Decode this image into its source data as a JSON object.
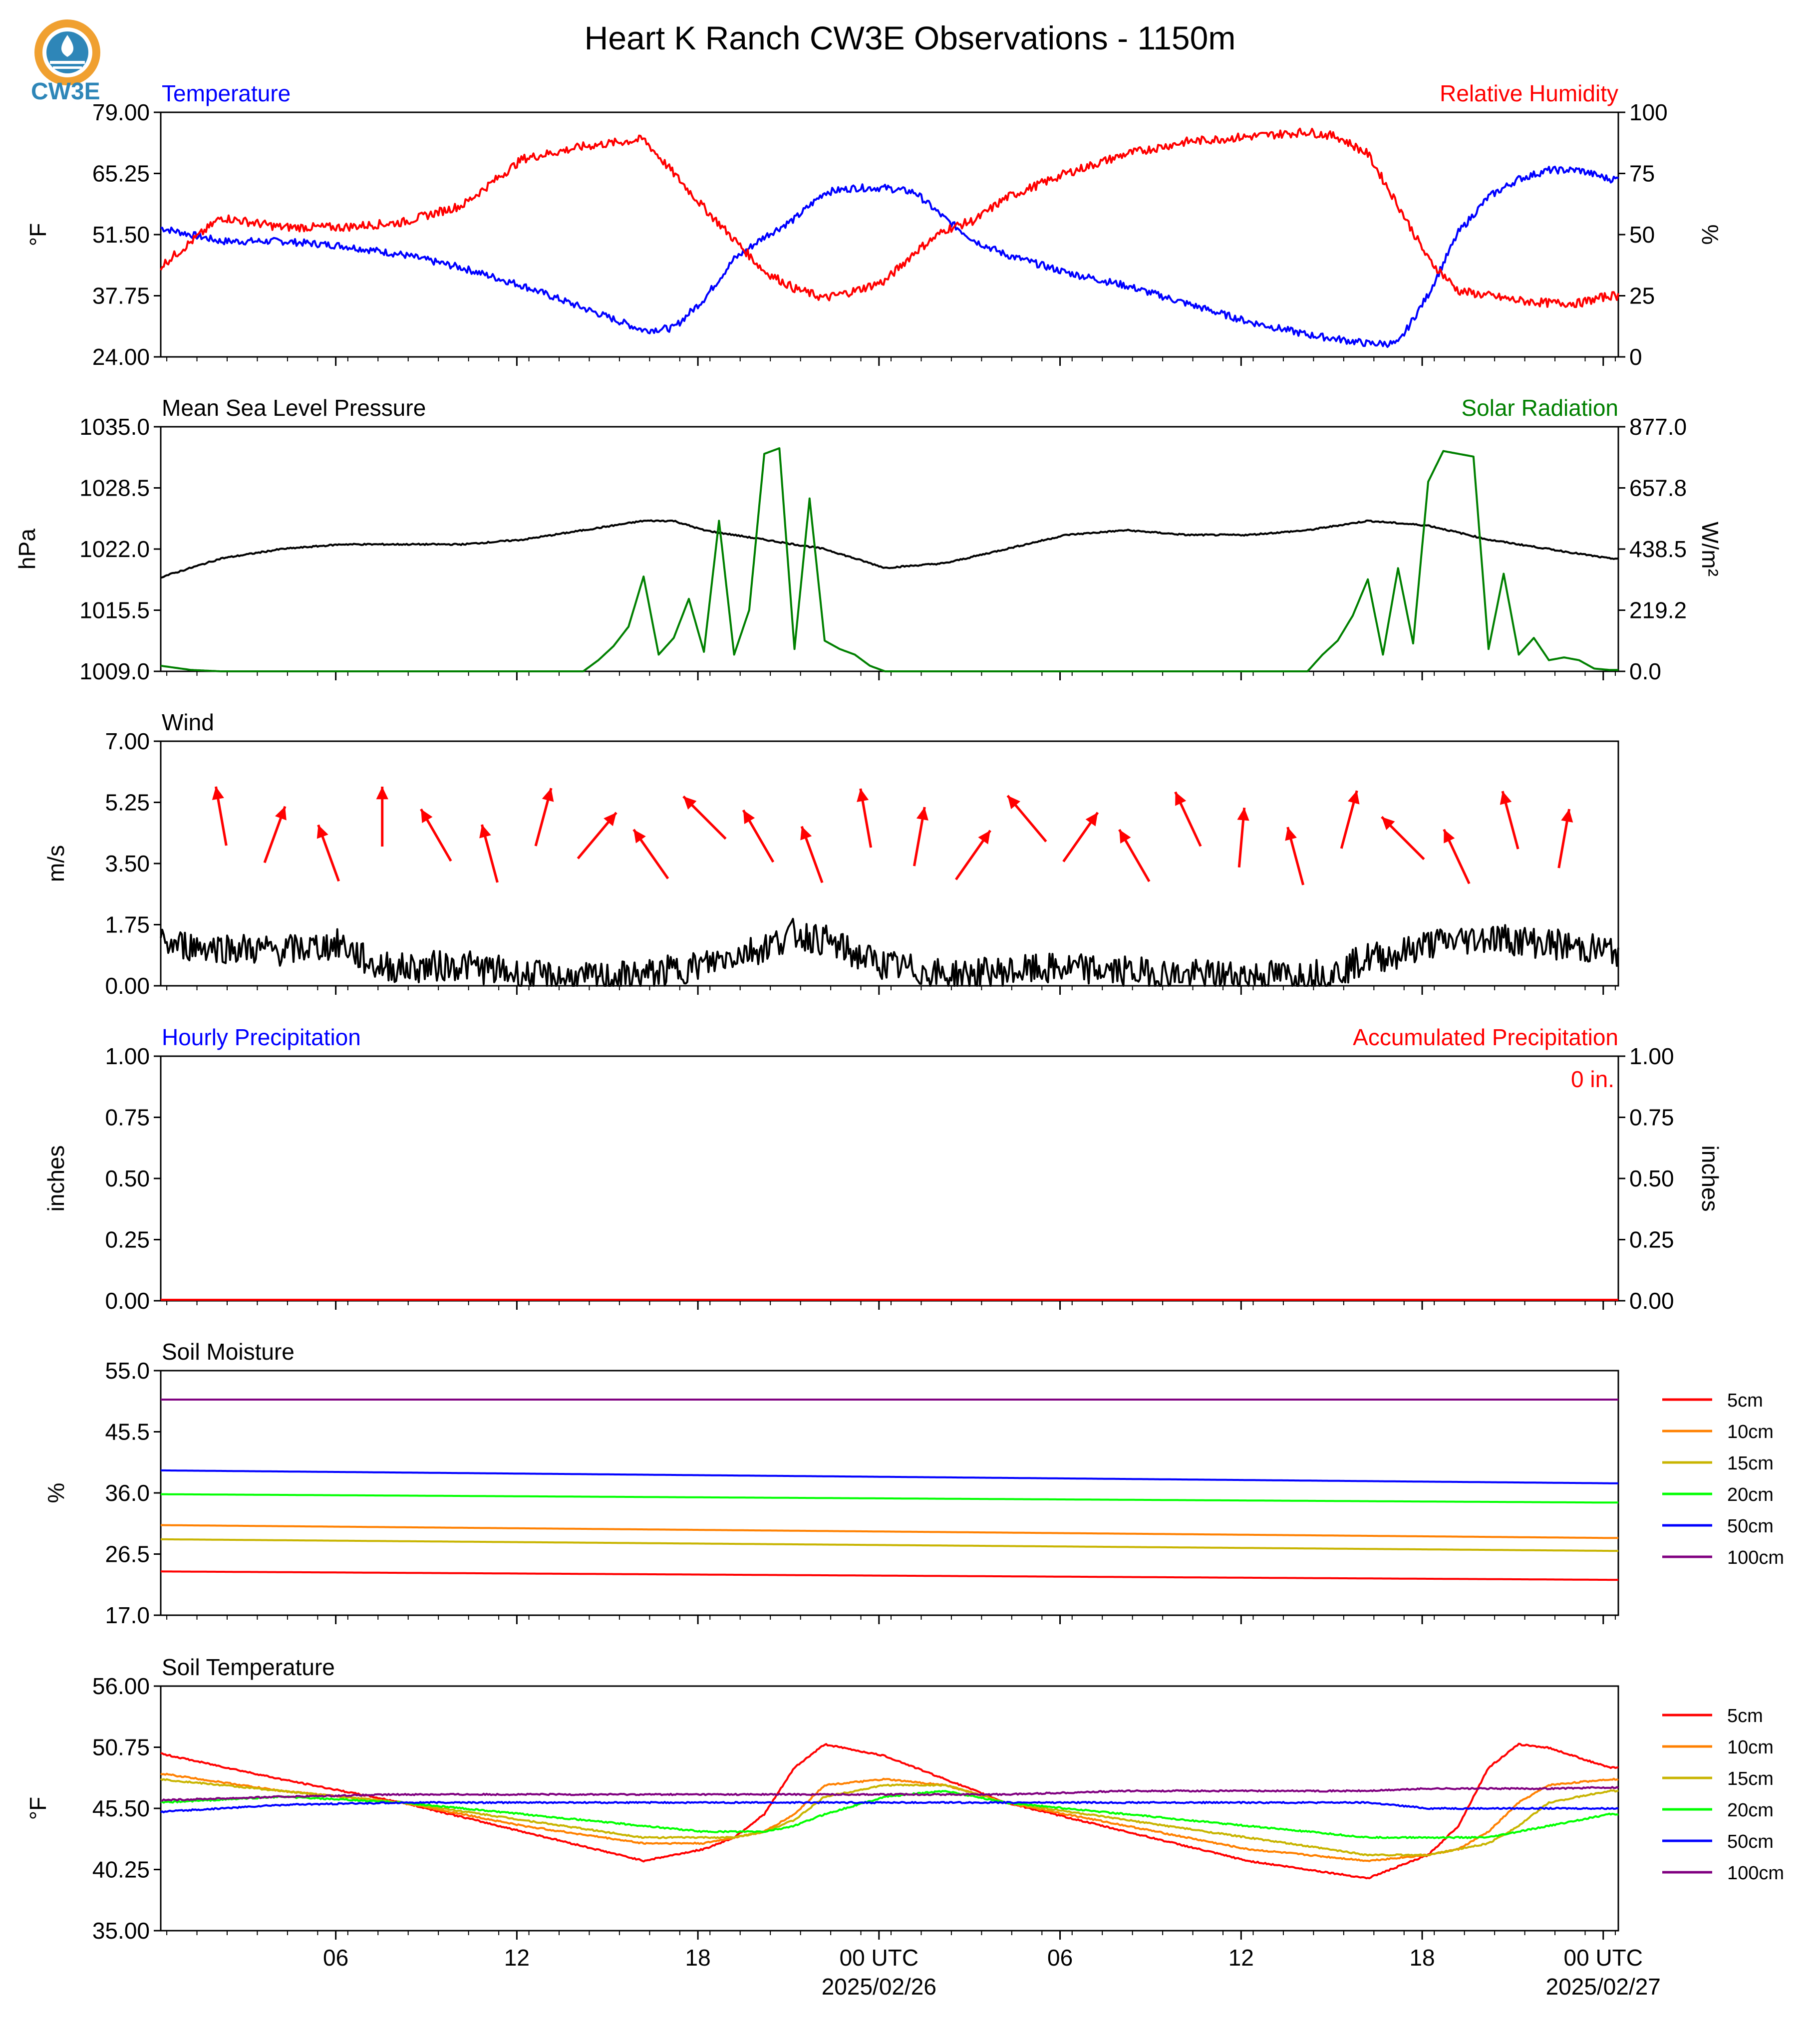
{
  "title": "Heart K Ranch CW3E Observations - 1150m",
  "logo_text": "CW3E",
  "colors": {
    "blue": "#0000ff",
    "red": "#ff0000",
    "green": "#008000",
    "black": "#000000"
  },
  "x_axis": {
    "ticks": [
      "06",
      "12",
      "18",
      "00 UTC",
      "06",
      "12",
      "18",
      "00 UTC"
    ],
    "dates": [
      "2025/02/26",
      "2025/02/27"
    ]
  },
  "panels": {
    "temperature": {
      "left_title": "Temperature",
      "right_title": "Relative Humidity",
      "left_label": "°F",
      "right_label": "%",
      "left_ticks": [
        "79.00",
        "65.25",
        "51.50",
        "37.75",
        "24.00"
      ],
      "right_ticks": [
        "100",
        "75",
        "50",
        "25",
        "0"
      ]
    },
    "pressure": {
      "left_title": "Mean Sea Level Pressure",
      "right_title": "Solar Radiation",
      "left_label": "hPa",
      "right_label": "W/m²",
      "left_ticks": [
        "1035.0",
        "1028.5",
        "1022.0",
        "1015.5",
        "1009.0"
      ],
      "right_ticks": [
        "877.0",
        "657.8",
        "438.5",
        "219.2",
        "0.0"
      ]
    },
    "wind": {
      "left_title": "Wind",
      "left_label": "m/s",
      "left_ticks": [
        "7.00",
        "5.25",
        "3.50",
        "1.75",
        "0.00"
      ]
    },
    "precip": {
      "left_title": "Hourly Precipitation",
      "right_title": "Accumulated Precipitation",
      "left_label": "inches",
      "right_label": "inches",
      "left_ticks": [
        "1.00",
        "0.75",
        "0.50",
        "0.25",
        "0.00"
      ],
      "right_ticks": [
        "1.00",
        "0.75",
        "0.50",
        "0.25",
        "0.00"
      ],
      "accum_text": "0 in."
    },
    "soil_moisture": {
      "left_title": "Soil Moisture",
      "left_label": "%",
      "left_ticks": [
        "55.0",
        "45.5",
        "36.0",
        "26.5",
        "17.0"
      ],
      "legend": [
        "5cm",
        "10cm",
        "15cm",
        "20cm",
        "50cm",
        "100cm"
      ]
    },
    "soil_temp": {
      "left_title": "Soil Temperature",
      "left_label": "°F",
      "left_ticks": [
        "56.00",
        "50.75",
        "45.50",
        "40.25",
        "35.00"
      ],
      "legend": [
        "5cm",
        "10cm",
        "15cm",
        "20cm",
        "50cm",
        "100cm"
      ]
    }
  },
  "chart_data": [
    {
      "type": "line",
      "name": "temperature",
      "title": "Temperature",
      "ylabel": "°F",
      "ylim": [
        24,
        79
      ],
      "x_hours": [
        0,
        2,
        4,
        6,
        8,
        10,
        12,
        14,
        16,
        17,
        18,
        19,
        20,
        21,
        22,
        23,
        24,
        25,
        26,
        27,
        28,
        30,
        32,
        34,
        36,
        38,
        39,
        40,
        41,
        42,
        43,
        44,
        45,
        46,
        47,
        48
      ],
      "series": [
        {
          "name": "Temperature",
          "color": "#0000ff",
          "values": [
            53,
            50,
            50,
            49,
            47,
            44,
            40,
            35,
            30,
            30.5,
            37,
            46,
            51,
            55,
            61,
            62,
            62,
            61,
            55,
            50,
            47,
            43,
            40,
            36,
            32,
            29,
            28,
            27,
            27,
            38,
            52,
            60,
            64,
            66,
            66,
            64
          ]
        },
        {
          "name": "Relative Humidity",
          "axis": "right",
          "ylim": [
            0,
            100
          ],
          "color": "#ff0000",
          "values": [
            37,
            57,
            53,
            53,
            55,
            62,
            81,
            86,
            89,
            75,
            61,
            48,
            35,
            28,
            24,
            27,
            31,
            43,
            52,
            56,
            65,
            75,
            83,
            88,
            90,
            92,
            90,
            83,
            62,
            40,
            27,
            25,
            23,
            22,
            22,
            25
          ]
        }
      ]
    },
    {
      "type": "line",
      "name": "pressure",
      "title": "Mean Sea Level Pressure",
      "ylabel": "hPa",
      "ylim": [
        1009,
        1035
      ],
      "x_hours": [
        0,
        2,
        4,
        6,
        8,
        10,
        12,
        14,
        16,
        17,
        18,
        20,
        22,
        24,
        26,
        28,
        30,
        32,
        34,
        36,
        38,
        40,
        42,
        44,
        46,
        48
      ],
      "series": [
        {
          "name": "Mean Sea Level Pressure",
          "color": "#000000",
          "values": [
            1019,
            1021,
            1022,
            1022.5,
            1022.5,
            1022.5,
            1023,
            1024,
            1025,
            1025,
            1024,
            1023,
            1022,
            1020,
            1020.5,
            1022,
            1023.5,
            1024,
            1023.5,
            1023.5,
            1024,
            1025,
            1024.5,
            1023,
            1022,
            1021
          ]
        },
        {
          "name": "Solar Radiation",
          "axis": "right",
          "ylim": [
            0,
            877
          ],
          "color": "#008000",
          "x_hours": [
            0,
            1,
            2,
            14,
            14.5,
            15,
            15.5,
            16,
            16.5,
            17,
            17.5,
            18,
            18.5,
            19,
            19.5,
            20,
            20.5,
            21,
            21.5,
            22,
            22.5,
            23,
            23.5,
            24,
            25,
            26,
            38,
            38.5,
            39,
            39.5,
            40,
            40.5,
            41,
            41.5,
            42,
            42.5,
            43,
            43.5,
            44,
            44.5,
            45,
            45.5,
            46,
            46.5,
            47,
            47.5,
            48
          ],
          "values": [
            20,
            5,
            0,
            0,
            40,
            90,
            160,
            340,
            60,
            120,
            260,
            70,
            540,
            60,
            220,
            780,
            800,
            80,
            620,
            110,
            80,
            60,
            20,
            0,
            0,
            0,
            0,
            60,
            110,
            200,
            330,
            60,
            370,
            100,
            680,
            790,
            780,
            770,
            80,
            350,
            60,
            120,
            40,
            50,
            40,
            10,
            5
          ]
        }
      ]
    },
    {
      "type": "line",
      "name": "wind",
      "title": "Wind",
      "ylabel": "m/s",
      "ylim": [
        0,
        7
      ],
      "x_hours": [
        0,
        2,
        4,
        6,
        7,
        8,
        10,
        12,
        14,
        16,
        18,
        19,
        20,
        21,
        22,
        23,
        24,
        26,
        28,
        30,
        32,
        34,
        36,
        38,
        39,
        40,
        41,
        42,
        43,
        44,
        46,
        48
      ],
      "series": [
        {
          "name": "Wind Speed",
          "color": "#000000",
          "values": [
            1.2,
            1.1,
            1.0,
            1.2,
            0.6,
            0.5,
            0.6,
            0.3,
            0.2,
            0.3,
            0.6,
            0.9,
            1.1,
            1.5,
            1.3,
            0.9,
            0.6,
            0.3,
            0.4,
            0.5,
            0.4,
            0.3,
            0.3,
            0.3,
            0.4,
            0.8,
            0.9,
            1.2,
            1.3,
            1.4,
            1.2,
            1.0
          ]
        }
      ],
      "barbs_angles_deg": [
        350,
        20,
        -20,
        0,
        -30,
        -15,
        15,
        40,
        -35,
        -45,
        -30,
        -20,
        -10,
        10,
        35,
        -40,
        35,
        -30,
        -25,
        5,
        -15,
        15,
        -45,
        -25,
        -15,
        10
      ]
    },
    {
      "type": "bar",
      "name": "precip",
      "title": "Hourly Precipitation",
      "ylabel": "inches",
      "ylim": [
        0,
        1
      ],
      "series": [
        {
          "name": "Hourly Precipitation",
          "values": [
            0
          ]
        },
        {
          "name": "Accumulated Precipitation",
          "axis": "right",
          "values": [
            0
          ]
        }
      ]
    },
    {
      "type": "line",
      "name": "soil_moisture",
      "title": "Soil Moisture",
      "ylabel": "%",
      "ylim": [
        17,
        55
      ],
      "x_hours": [
        0,
        48
      ],
      "series": [
        {
          "name": "5cm",
          "color": "#ff0000",
          "values": [
            23.8,
            22.5
          ]
        },
        {
          "name": "10cm",
          "color": "#ff8000",
          "values": [
            31.0,
            29.0
          ]
        },
        {
          "name": "15cm",
          "color": "#c8b400",
          "values": [
            28.8,
            27.0
          ]
        },
        {
          "name": "20cm",
          "color": "#00ff00",
          "values": [
            35.8,
            34.5
          ]
        },
        {
          "name": "50cm",
          "color": "#0000ff",
          "values": [
            39.5,
            37.5
          ]
        },
        {
          "name": "100cm",
          "color": "#800080",
          "values": [
            50.5,
            50.5
          ]
        }
      ]
    },
    {
      "type": "line",
      "name": "soil_temp",
      "title": "Soil Temperature",
      "ylabel": "°F",
      "ylim": [
        35,
        56
      ],
      "x_hours": [
        0,
        4,
        8,
        12,
        16,
        18,
        19,
        20,
        21,
        22,
        24,
        26,
        28,
        32,
        36,
        40,
        42,
        43,
        44,
        45,
        46,
        48
      ],
      "series": [
        {
          "name": "5cm",
          "color": "#ff0000",
          "values": [
            50.2,
            48,
            46,
            43.5,
            41,
            42,
            43,
            45,
            49,
            51,
            50,
            48,
            46,
            43.5,
            41,
            39.5,
            41.5,
            44,
            49,
            51,
            50.7,
            49
          ]
        },
        {
          "name": "10cm",
          "color": "#ff8000",
          "values": [
            48.5,
            47,
            46,
            44,
            42.5,
            42.5,
            43,
            43.5,
            45,
            47.5,
            48,
            47.5,
            46,
            44,
            42,
            41,
            41.5,
            42,
            43.5,
            46,
            47.5,
            48
          ]
        },
        {
          "name": "15cm",
          "color": "#c8b400",
          "values": [
            48,
            47,
            46,
            44.5,
            43,
            43,
            43,
            43.5,
            44.5,
            46.5,
            47.5,
            47.5,
            46,
            44.5,
            43,
            41.5,
            41.5,
            42,
            42.5,
            44,
            46,
            47
          ]
        },
        {
          "name": "20cm",
          "color": "#00ff00",
          "values": [
            46,
            46.5,
            46,
            45,
            44,
            43.5,
            43.5,
            43.5,
            44,
            45,
            46.5,
            47,
            46,
            45,
            44,
            43,
            43,
            43,
            43,
            43.5,
            44,
            45
          ]
        },
        {
          "name": "50cm",
          "color": "#0000ff",
          "values": [
            45.2,
            45.8,
            46,
            46,
            46,
            46,
            46,
            46,
            46,
            46,
            46,
            46,
            46,
            46,
            46,
            46,
            45.5,
            45.5,
            45.5,
            45.5,
            45.5,
            45.5
          ]
        },
        {
          "name": "100cm",
          "color": "#800080",
          "values": [
            46.2,
            46.5,
            46.7,
            46.7,
            46.7,
            46.7,
            46.7,
            46.7,
            46.7,
            46.7,
            46.7,
            46.7,
            46.7,
            47,
            47,
            47,
            47.2,
            47.2,
            47.2,
            47.2,
            47.2,
            47.3
          ]
        }
      ]
    }
  ]
}
